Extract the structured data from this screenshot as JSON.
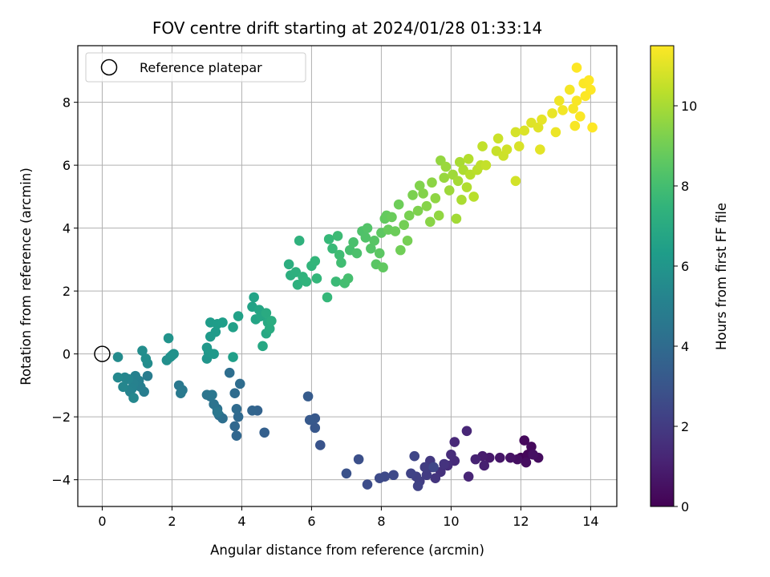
{
  "chart_data": {
    "type": "scatter",
    "title": "FOV centre drift starting at 2024/01/28 01:33:14",
    "xlabel": "Angular distance from reference (arcmin)",
    "ylabel": "Rotation from reference (arcmin)",
    "xlim": [
      -0.7,
      14.75
    ],
    "ylim": [
      -4.85,
      9.8
    ],
    "xticks": [
      "0",
      "2",
      "4",
      "6",
      "8",
      "10",
      "12",
      "14"
    ],
    "yticks": [
      "−4",
      "−2",
      "0",
      "2",
      "4",
      "6",
      "8"
    ],
    "grid": true,
    "legend": {
      "position": "top-left",
      "entries": [
        "Reference platepar"
      ]
    },
    "reference_point": {
      "x": 0,
      "y": 0
    },
    "colorbar": {
      "label": "Hours from first FF file",
      "range": [
        0,
        11.5
      ],
      "ticks": [
        "0",
        "2",
        "4",
        "6",
        "8",
        "10"
      ],
      "colormap": "viridis"
    },
    "points": [
      {
        "x": 12.0,
        "y": -3.3,
        "t": 0.1
      },
      {
        "x": 12.2,
        "y": -3.2,
        "t": 0.2
      },
      {
        "x": 12.1,
        "y": -2.75,
        "t": 0.25
      },
      {
        "x": 12.3,
        "y": -2.95,
        "t": 0.3
      },
      {
        "x": 12.5,
        "y": -3.3,
        "t": 0.35
      },
      {
        "x": 12.15,
        "y": -3.45,
        "t": 0.4
      },
      {
        "x": 11.9,
        "y": -3.35,
        "t": 0.45
      },
      {
        "x": 12.35,
        "y": -3.2,
        "t": 0.5
      },
      {
        "x": 11.7,
        "y": -3.3,
        "t": 0.6
      },
      {
        "x": 11.4,
        "y": -3.3,
        "t": 0.7
      },
      {
        "x": 11.1,
        "y": -3.3,
        "t": 0.8
      },
      {
        "x": 10.9,
        "y": -3.25,
        "t": 0.9
      },
      {
        "x": 10.95,
        "y": -3.55,
        "t": 1.0
      },
      {
        "x": 10.7,
        "y": -3.35,
        "t": 1.1
      },
      {
        "x": 10.5,
        "y": -3.9,
        "t": 1.2
      },
      {
        "x": 10.45,
        "y": -2.45,
        "t": 1.25
      },
      {
        "x": 10.1,
        "y": -2.8,
        "t": 1.3
      },
      {
        "x": 10.1,
        "y": -3.4,
        "t": 1.4
      },
      {
        "x": 10.0,
        "y": -3.2,
        "t": 1.45
      },
      {
        "x": 9.9,
        "y": -3.55,
        "t": 1.5
      },
      {
        "x": 9.7,
        "y": -3.75,
        "t": 1.6
      },
      {
        "x": 9.8,
        "y": -3.5,
        "t": 1.7
      },
      {
        "x": 9.55,
        "y": -3.95,
        "t": 1.75
      },
      {
        "x": 9.45,
        "y": -3.6,
        "t": 1.8
      },
      {
        "x": 9.4,
        "y": -3.4,
        "t": 1.9
      },
      {
        "x": 9.3,
        "y": -3.85,
        "t": 2.0
      },
      {
        "x": 9.25,
        "y": -3.6,
        "t": 2.05
      },
      {
        "x": 9.1,
        "y": -4.05,
        "t": 2.1
      },
      {
        "x": 9.0,
        "y": -3.9,
        "t": 2.2
      },
      {
        "x": 9.05,
        "y": -4.2,
        "t": 2.25
      },
      {
        "x": 8.85,
        "y": -3.8,
        "t": 2.3
      },
      {
        "x": 8.95,
        "y": -3.25,
        "t": 2.4
      },
      {
        "x": 9.5,
        "y": -3.6,
        "t": 2.45
      },
      {
        "x": 8.35,
        "y": -3.85,
        "t": 2.5
      },
      {
        "x": 8.1,
        "y": -3.9,
        "t": 2.55
      },
      {
        "x": 7.95,
        "y": -3.95,
        "t": 2.6
      },
      {
        "x": 7.6,
        "y": -4.15,
        "t": 2.7
      },
      {
        "x": 7.35,
        "y": -3.35,
        "t": 2.8
      },
      {
        "x": 7.0,
        "y": -3.8,
        "t": 2.9
      },
      {
        "x": 6.25,
        "y": -2.9,
        "t": 3.0
      },
      {
        "x": 6.1,
        "y": -2.35,
        "t": 3.1
      },
      {
        "x": 6.1,
        "y": -2.05,
        "t": 3.15
      },
      {
        "x": 5.95,
        "y": -2.1,
        "t": 3.2
      },
      {
        "x": 5.9,
        "y": -1.35,
        "t": 3.3
      },
      {
        "x": 4.65,
        "y": -2.5,
        "t": 3.5
      },
      {
        "x": 4.45,
        "y": -1.8,
        "t": 3.6
      },
      {
        "x": 4.3,
        "y": -1.8,
        "t": 3.7
      },
      {
        "x": 3.85,
        "y": -2.6,
        "t": 3.8
      },
      {
        "x": 3.8,
        "y": -2.3,
        "t": 3.85
      },
      {
        "x": 3.9,
        "y": -2.0,
        "t": 3.9
      },
      {
        "x": 3.85,
        "y": -1.75,
        "t": 4.0
      },
      {
        "x": 3.8,
        "y": -1.25,
        "t": 4.05
      },
      {
        "x": 3.95,
        "y": -0.95,
        "t": 4.1
      },
      {
        "x": 3.65,
        "y": -0.6,
        "t": 4.15
      },
      {
        "x": 3.45,
        "y": -2.05,
        "t": 4.2
      },
      {
        "x": 3.35,
        "y": -1.95,
        "t": 4.25
      },
      {
        "x": 3.3,
        "y": -1.75,
        "t": 4.3
      },
      {
        "x": 3.2,
        "y": -1.6,
        "t": 4.35
      },
      {
        "x": 3.1,
        "y": -1.35,
        "t": 4.4
      },
      {
        "x": 3.0,
        "y": -1.3,
        "t": 4.45
      },
      {
        "x": 3.15,
        "y": -1.3,
        "t": 4.5
      },
      {
        "x": 3.3,
        "y": -1.85,
        "t": 4.55
      },
      {
        "x": 2.2,
        "y": -1.0,
        "t": 4.6
      },
      {
        "x": 2.3,
        "y": -1.15,
        "t": 4.65
      },
      {
        "x": 2.25,
        "y": -1.25,
        "t": 4.7
      },
      {
        "x": 1.3,
        "y": -0.7,
        "t": 4.8
      },
      {
        "x": 1.2,
        "y": -1.2,
        "t": 4.85
      },
      {
        "x": 1.1,
        "y": -1.05,
        "t": 4.9
      },
      {
        "x": 1.05,
        "y": -0.85,
        "t": 4.95
      },
      {
        "x": 0.95,
        "y": -0.7,
        "t": 5.0
      },
      {
        "x": 0.9,
        "y": -0.95,
        "t": 5.05
      },
      {
        "x": 0.85,
        "y": -1.1,
        "t": 5.1
      },
      {
        "x": 0.8,
        "y": -1.2,
        "t": 5.15
      },
      {
        "x": 0.75,
        "y": -0.8,
        "t": 5.2
      },
      {
        "x": 0.65,
        "y": -0.75,
        "t": 5.25
      },
      {
        "x": 0.6,
        "y": -1.05,
        "t": 5.3
      },
      {
        "x": 0.9,
        "y": -1.4,
        "t": 5.35
      },
      {
        "x": 0.45,
        "y": -0.75,
        "t": 5.4
      },
      {
        "x": 0.45,
        "y": -0.1,
        "t": 5.5
      },
      {
        "x": 1.3,
        "y": -0.3,
        "t": 5.55
      },
      {
        "x": 1.15,
        "y": 0.1,
        "t": 5.6
      },
      {
        "x": 1.25,
        "y": -0.15,
        "t": 5.65
      },
      {
        "x": 1.85,
        "y": -0.2,
        "t": 5.7
      },
      {
        "x": 1.95,
        "y": -0.1,
        "t": 5.75
      },
      {
        "x": 2.0,
        "y": -0.05,
        "t": 5.8
      },
      {
        "x": 2.05,
        "y": 0.0,
        "t": 5.85
      },
      {
        "x": 1.9,
        "y": 0.5,
        "t": 5.9
      },
      {
        "x": 3.0,
        "y": -0.15,
        "t": 6.0
      },
      {
        "x": 3.05,
        "y": 0.05,
        "t": 6.05
      },
      {
        "x": 3.0,
        "y": 0.2,
        "t": 6.1
      },
      {
        "x": 3.2,
        "y": 0.0,
        "t": 6.15
      },
      {
        "x": 3.1,
        "y": 0.55,
        "t": 6.2
      },
      {
        "x": 3.25,
        "y": 0.7,
        "t": 6.25
      },
      {
        "x": 3.1,
        "y": 1.0,
        "t": 6.3
      },
      {
        "x": 3.3,
        "y": 0.95,
        "t": 6.35
      },
      {
        "x": 3.45,
        "y": 1.0,
        "t": 6.4
      },
      {
        "x": 3.75,
        "y": -0.1,
        "t": 6.45
      },
      {
        "x": 3.75,
        "y": 0.85,
        "t": 6.5
      },
      {
        "x": 3.9,
        "y": 1.2,
        "t": 6.55
      },
      {
        "x": 4.3,
        "y": 1.5,
        "t": 6.6
      },
      {
        "x": 4.35,
        "y": 1.8,
        "t": 6.65
      },
      {
        "x": 4.4,
        "y": 1.1,
        "t": 6.7
      },
      {
        "x": 4.5,
        "y": 1.4,
        "t": 6.75
      },
      {
        "x": 4.55,
        "y": 1.2,
        "t": 6.8
      },
      {
        "x": 4.6,
        "y": 0.25,
        "t": 6.85
      },
      {
        "x": 4.7,
        "y": 0.65,
        "t": 6.9
      },
      {
        "x": 4.75,
        "y": 1.0,
        "t": 6.95
      },
      {
        "x": 4.7,
        "y": 1.3,
        "t": 7.0
      },
      {
        "x": 4.8,
        "y": 0.8,
        "t": 7.05
      },
      {
        "x": 4.85,
        "y": 1.05,
        "t": 7.1
      },
      {
        "x": 5.35,
        "y": 2.85,
        "t": 7.15
      },
      {
        "x": 5.4,
        "y": 2.5,
        "t": 7.2
      },
      {
        "x": 5.55,
        "y": 2.6,
        "t": 7.25
      },
      {
        "x": 5.6,
        "y": 2.2,
        "t": 7.3
      },
      {
        "x": 5.65,
        "y": 3.6,
        "t": 7.35
      },
      {
        "x": 5.75,
        "y": 2.45,
        "t": 7.4
      },
      {
        "x": 5.85,
        "y": 2.3,
        "t": 7.45
      },
      {
        "x": 6.0,
        "y": 2.8,
        "t": 7.5
      },
      {
        "x": 6.1,
        "y": 2.95,
        "t": 7.55
      },
      {
        "x": 6.15,
        "y": 2.4,
        "t": 7.6
      },
      {
        "x": 6.45,
        "y": 1.8,
        "t": 7.65
      },
      {
        "x": 6.5,
        "y": 3.65,
        "t": 7.7
      },
      {
        "x": 6.6,
        "y": 3.35,
        "t": 7.75
      },
      {
        "x": 6.7,
        "y": 2.3,
        "t": 7.8
      },
      {
        "x": 6.75,
        "y": 3.75,
        "t": 7.85
      },
      {
        "x": 6.8,
        "y": 3.15,
        "t": 7.9
      },
      {
        "x": 6.85,
        "y": 2.9,
        "t": 7.95
      },
      {
        "x": 6.95,
        "y": 2.25,
        "t": 8.0
      },
      {
        "x": 7.05,
        "y": 2.4,
        "t": 8.05
      },
      {
        "x": 7.1,
        "y": 3.3,
        "t": 8.1
      },
      {
        "x": 7.2,
        "y": 3.55,
        "t": 8.15
      },
      {
        "x": 7.3,
        "y": 3.2,
        "t": 8.2
      },
      {
        "x": 7.45,
        "y": 3.9,
        "t": 8.25
      },
      {
        "x": 7.55,
        "y": 3.7,
        "t": 8.3
      },
      {
        "x": 7.6,
        "y": 4.0,
        "t": 8.35
      },
      {
        "x": 7.7,
        "y": 3.35,
        "t": 8.4
      },
      {
        "x": 7.8,
        "y": 3.6,
        "t": 8.45
      },
      {
        "x": 7.85,
        "y": 2.85,
        "t": 8.5
      },
      {
        "x": 7.95,
        "y": 3.2,
        "t": 8.55
      },
      {
        "x": 8.0,
        "y": 3.85,
        "t": 8.6
      },
      {
        "x": 8.05,
        "y": 2.75,
        "t": 8.65
      },
      {
        "x": 8.1,
        "y": 4.3,
        "t": 8.7
      },
      {
        "x": 8.15,
        "y": 4.4,
        "t": 8.75
      },
      {
        "x": 8.2,
        "y": 3.95,
        "t": 8.8
      },
      {
        "x": 8.3,
        "y": 4.35,
        "t": 8.85
      },
      {
        "x": 8.4,
        "y": 3.9,
        "t": 8.9
      },
      {
        "x": 8.5,
        "y": 4.75,
        "t": 8.95
      },
      {
        "x": 8.55,
        "y": 3.3,
        "t": 9.0
      },
      {
        "x": 8.65,
        "y": 4.1,
        "t": 9.05
      },
      {
        "x": 8.75,
        "y": 3.6,
        "t": 9.1
      },
      {
        "x": 8.8,
        "y": 4.4,
        "t": 9.15
      },
      {
        "x": 8.9,
        "y": 5.05,
        "t": 9.2
      },
      {
        "x": 9.05,
        "y": 4.55,
        "t": 9.25
      },
      {
        "x": 9.1,
        "y": 5.35,
        "t": 9.3
      },
      {
        "x": 9.2,
        "y": 5.1,
        "t": 9.35
      },
      {
        "x": 9.3,
        "y": 4.7,
        "t": 9.4
      },
      {
        "x": 9.4,
        "y": 4.2,
        "t": 9.45
      },
      {
        "x": 9.45,
        "y": 5.45,
        "t": 9.5
      },
      {
        "x": 9.55,
        "y": 4.95,
        "t": 9.55
      },
      {
        "x": 9.65,
        "y": 4.4,
        "t": 9.6
      },
      {
        "x": 9.7,
        "y": 6.15,
        "t": 9.65
      },
      {
        "x": 9.8,
        "y": 5.6,
        "t": 9.7
      },
      {
        "x": 9.85,
        "y": 5.95,
        "t": 9.75
      },
      {
        "x": 9.95,
        "y": 5.2,
        "t": 9.8
      },
      {
        "x": 10.05,
        "y": 5.7,
        "t": 9.85
      },
      {
        "x": 10.15,
        "y": 4.3,
        "t": 9.9
      },
      {
        "x": 10.2,
        "y": 5.5,
        "t": 9.95
      },
      {
        "x": 10.25,
        "y": 6.1,
        "t": 10.0
      },
      {
        "x": 10.3,
        "y": 4.9,
        "t": 10.05
      },
      {
        "x": 10.35,
        "y": 5.85,
        "t": 10.1
      },
      {
        "x": 10.45,
        "y": 5.3,
        "t": 10.15
      },
      {
        "x": 10.5,
        "y": 6.2,
        "t": 10.2
      },
      {
        "x": 10.55,
        "y": 5.7,
        "t": 10.25
      },
      {
        "x": 10.65,
        "y": 5.0,
        "t": 10.3
      },
      {
        "x": 10.75,
        "y": 5.85,
        "t": 10.35
      },
      {
        "x": 10.85,
        "y": 6.0,
        "t": 10.4
      },
      {
        "x": 10.9,
        "y": 6.6,
        "t": 10.45
      },
      {
        "x": 11.0,
        "y": 6.0,
        "t": 10.5
      },
      {
        "x": 11.3,
        "y": 6.45,
        "t": 10.55
      },
      {
        "x": 11.35,
        "y": 6.85,
        "t": 10.6
      },
      {
        "x": 11.5,
        "y": 6.3,
        "t": 10.65
      },
      {
        "x": 11.6,
        "y": 6.5,
        "t": 10.7
      },
      {
        "x": 11.85,
        "y": 5.5,
        "t": 10.75
      },
      {
        "x": 11.85,
        "y": 7.05,
        "t": 10.8
      },
      {
        "x": 11.95,
        "y": 6.6,
        "t": 10.85
      },
      {
        "x": 12.1,
        "y": 7.1,
        "t": 10.9
      },
      {
        "x": 12.3,
        "y": 7.35,
        "t": 10.95
      },
      {
        "x": 12.5,
        "y": 7.2,
        "t": 11.0
      },
      {
        "x": 12.55,
        "y": 6.5,
        "t": 11.05
      },
      {
        "x": 12.6,
        "y": 7.45,
        "t": 11.1
      },
      {
        "x": 12.9,
        "y": 7.65,
        "t": 11.15
      },
      {
        "x": 13.0,
        "y": 7.05,
        "t": 11.2
      },
      {
        "x": 13.1,
        "y": 8.05,
        "t": 11.25
      },
      {
        "x": 13.2,
        "y": 7.75,
        "t": 11.3
      },
      {
        "x": 13.4,
        "y": 8.4,
        "t": 11.35
      },
      {
        "x": 13.5,
        "y": 7.8,
        "t": 11.38
      },
      {
        "x": 13.55,
        "y": 7.25,
        "t": 11.4
      },
      {
        "x": 13.6,
        "y": 8.05,
        "t": 11.42
      },
      {
        "x": 13.7,
        "y": 7.55,
        "t": 11.44
      },
      {
        "x": 13.8,
        "y": 8.6,
        "t": 11.46
      },
      {
        "x": 13.85,
        "y": 8.2,
        "t": 11.48
      },
      {
        "x": 13.95,
        "y": 8.7,
        "t": 11.5
      },
      {
        "x": 14.0,
        "y": 8.4,
        "t": 11.5
      },
      {
        "x": 14.05,
        "y": 7.2,
        "t": 11.5
      },
      {
        "x": 13.6,
        "y": 9.1,
        "t": 11.5
      }
    ]
  }
}
